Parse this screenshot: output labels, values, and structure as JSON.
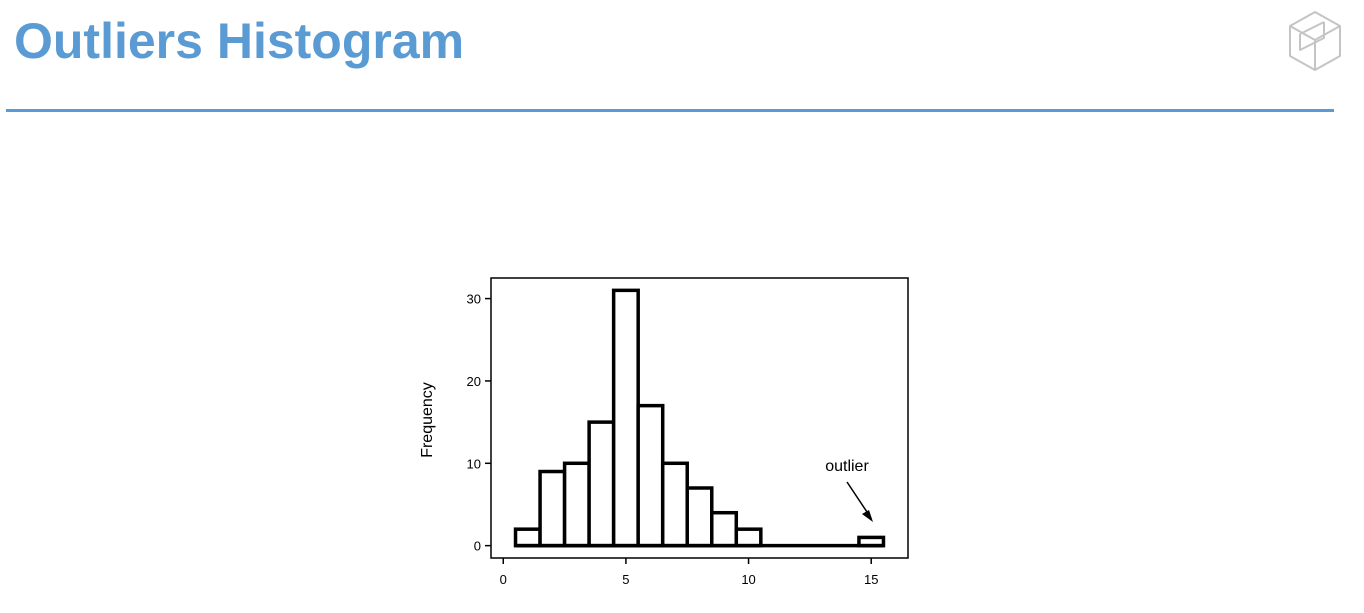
{
  "header": {
    "title": "Outliers Histogram",
    "title_color": "#5a9bd3",
    "divider_color": "#5a9bd3",
    "logo_icon": "cube-logo-icon"
  },
  "chart_data": {
    "type": "bar",
    "title": "",
    "xlabel": "",
    "ylabel": "Frequency",
    "bin_width": 1,
    "bins": [
      {
        "x": 1,
        "count": 2
      },
      {
        "x": 2,
        "count": 9
      },
      {
        "x": 3,
        "count": 10
      },
      {
        "x": 4,
        "count": 15
      },
      {
        "x": 5,
        "count": 31
      },
      {
        "x": 6,
        "count": 17
      },
      {
        "x": 7,
        "count": 10
      },
      {
        "x": 8,
        "count": 7
      },
      {
        "x": 9,
        "count": 4
      },
      {
        "x": 10,
        "count": 2
      },
      {
        "x": 11,
        "count": 0
      },
      {
        "x": 12,
        "count": 0
      },
      {
        "x": 13,
        "count": 0
      },
      {
        "x": 14,
        "count": 0
      },
      {
        "x": 15,
        "count": 1
      }
    ],
    "xlim": [
      -0.5,
      16.5
    ],
    "ylim": [
      -1.5,
      32.5
    ],
    "x_ticks": [
      0,
      5,
      10,
      15
    ],
    "y_ticks": [
      0,
      10,
      20,
      30
    ],
    "grid": false,
    "annotations": [
      {
        "text": "outlier",
        "x": 15,
        "y": 1
      }
    ]
  }
}
